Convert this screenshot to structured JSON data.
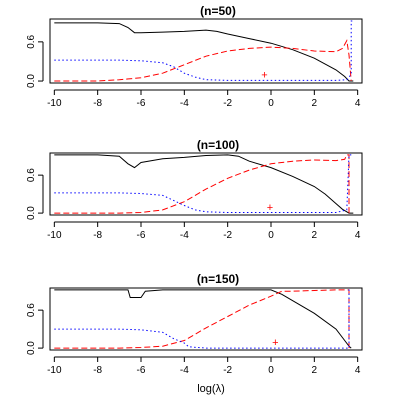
{
  "xlabel": "log(λ)",
  "colors": {
    "solid": "#000000",
    "dashed": "#ff0000",
    "dotted": "#0000ff",
    "marker": "#ff0000"
  },
  "chart_data": [
    {
      "type": "line",
      "title": "(n=50)",
      "xlim": [
        -10.2,
        4.2
      ],
      "ylim": [
        -0.03,
        0.95
      ],
      "x_ticks": [
        -10,
        -8,
        -6,
        -4,
        -2,
        0,
        2,
        4
      ],
      "y_ticks": [
        0.0,
        0.6
      ],
      "y_tick_labels": [
        "0.0",
        "0.6"
      ],
      "marker": {
        "x": -0.3,
        "y": 0.1,
        "symbol": "+"
      },
      "series": [
        {
          "style": "solid",
          "color": "black",
          "x": [
            -10,
            -9,
            -8,
            -7,
            -6.6,
            -6.3,
            -6,
            -5,
            -4,
            -3,
            -2.5,
            -2,
            -1,
            0,
            1,
            2,
            3,
            3.4,
            3.6,
            3.8
          ],
          "y": [
            0.89,
            0.89,
            0.89,
            0.88,
            0.82,
            0.74,
            0.74,
            0.75,
            0.76,
            0.78,
            0.76,
            0.72,
            0.65,
            0.58,
            0.48,
            0.35,
            0.17,
            0.07,
            0.0,
            0.0
          ]
        },
        {
          "style": "dashed",
          "color": "red",
          "x": [
            -10,
            -9,
            -8,
            -7,
            -6,
            -5,
            -4,
            -3,
            -2,
            -1,
            0,
            1,
            2,
            3,
            3.3,
            3.5,
            3.6,
            3.7
          ],
          "y": [
            0.0,
            0.0,
            0.0,
            0.02,
            0.05,
            0.12,
            0.25,
            0.38,
            0.46,
            0.5,
            0.52,
            0.5,
            0.46,
            0.45,
            0.5,
            0.62,
            0.4,
            0.0
          ]
        },
        {
          "style": "dotted",
          "color": "blue",
          "x": [
            -10,
            -9,
            -8,
            -7,
            -6,
            -5,
            -4.5,
            -4,
            -3.5,
            -3,
            -2,
            0,
            2,
            3,
            3.5,
            3.7,
            3.7,
            3.8
          ],
          "y": [
            0.32,
            0.32,
            0.32,
            0.32,
            0.31,
            0.28,
            0.22,
            0.12,
            0.06,
            0.02,
            0.01,
            0.01,
            0.01,
            0.01,
            0.02,
            0.1,
            0.92,
            0.92
          ]
        }
      ]
    },
    {
      "type": "line",
      "title": "(n=100)",
      "xlim": [
        -10.2,
        4.2
      ],
      "ylim": [
        -0.03,
        0.95
      ],
      "x_ticks": [
        -10,
        -8,
        -6,
        -4,
        -2,
        0,
        2,
        4
      ],
      "y_ticks": [
        0.0,
        0.6
      ],
      "y_tick_labels": [
        "0.0",
        "0.6"
      ],
      "marker": {
        "x": -0.05,
        "y": 0.1,
        "symbol": "+"
      },
      "series": [
        {
          "style": "solid",
          "color": "black",
          "x": [
            -10,
            -9,
            -8,
            -7,
            -6.6,
            -6.3,
            -6,
            -5,
            -4,
            -3,
            -2,
            -1.5,
            -1,
            0,
            1,
            2,
            2.5,
            3,
            3.3,
            3.5,
            3.6,
            3.8
          ],
          "y": [
            0.92,
            0.92,
            0.92,
            0.9,
            0.78,
            0.72,
            0.8,
            0.86,
            0.88,
            0.91,
            0.92,
            0.9,
            0.82,
            0.72,
            0.58,
            0.42,
            0.3,
            0.15,
            0.06,
            0.02,
            0.0,
            0.0
          ]
        },
        {
          "style": "dashed",
          "color": "red",
          "x": [
            -10,
            -8,
            -7,
            -6,
            -5,
            -4,
            -3,
            -2,
            -1,
            0,
            1,
            2,
            3,
            3.4,
            3.5,
            3.6,
            3.6
          ],
          "y": [
            0.0,
            0.0,
            0.0,
            0.01,
            0.05,
            0.18,
            0.38,
            0.55,
            0.68,
            0.78,
            0.82,
            0.84,
            0.83,
            0.85,
            0.92,
            0.92,
            0.0
          ]
        },
        {
          "style": "dotted",
          "color": "blue",
          "x": [
            -10,
            -9,
            -8,
            -7,
            -6,
            -5,
            -4.5,
            -4,
            -3.5,
            -3,
            -2,
            0,
            2,
            3,
            3.5,
            3.6,
            3.7,
            3.8
          ],
          "y": [
            0.32,
            0.32,
            0.32,
            0.32,
            0.31,
            0.28,
            0.2,
            0.12,
            0.05,
            0.02,
            0.01,
            0.01,
            0.01,
            0.01,
            0.05,
            0.92,
            0.92,
            0.92
          ]
        }
      ]
    },
    {
      "type": "line",
      "title": "(n=150)",
      "xlim": [
        -10.2,
        4.2
      ],
      "ylim": [
        -0.03,
        0.95
      ],
      "x_ticks": [
        -10,
        -8,
        -6,
        -4,
        -2,
        0,
        2,
        4
      ],
      "y_ticks": [
        0.0,
        0.6
      ],
      "y_tick_labels": [
        "0.0",
        "0.6"
      ],
      "marker": {
        "x": 0.2,
        "y": 0.1,
        "symbol": "+"
      },
      "series": [
        {
          "style": "solid",
          "color": "black",
          "x": [
            -10,
            -8,
            -7,
            -6.6,
            -6.5,
            -6,
            -5.8,
            -5,
            -4,
            -2,
            -1,
            0,
            0.5,
            1,
            2,
            3,
            3.4,
            3.6,
            3.7
          ],
          "y": [
            0.92,
            0.92,
            0.92,
            0.92,
            0.8,
            0.8,
            0.9,
            0.92,
            0.92,
            0.92,
            0.92,
            0.92,
            0.85,
            0.75,
            0.55,
            0.3,
            0.12,
            0.03,
            0.0
          ]
        },
        {
          "style": "dashed",
          "color": "red",
          "x": [
            -10,
            -8,
            -7,
            -6,
            -5,
            -4,
            -3.5,
            -3,
            -2,
            -1,
            0,
            0.5,
            1,
            2,
            3,
            3.6,
            3.6
          ],
          "y": [
            0.0,
            0.0,
            0.0,
            0.01,
            0.03,
            0.12,
            0.22,
            0.32,
            0.5,
            0.68,
            0.82,
            0.9,
            0.9,
            0.91,
            0.92,
            0.92,
            0.0
          ]
        },
        {
          "style": "dotted",
          "color": "blue",
          "x": [
            -10,
            -9,
            -8,
            -7,
            -6,
            -5,
            -4.5,
            -4,
            -3.8,
            -3,
            -2,
            0,
            2,
            3,
            3.5,
            3.6,
            3.6,
            3.7
          ],
          "y": [
            0.3,
            0.3,
            0.3,
            0.3,
            0.29,
            0.25,
            0.15,
            0.08,
            0.02,
            0.0,
            0.0,
            0.0,
            0.0,
            0.0,
            0.0,
            0.0,
            0.92,
            0.92
          ]
        }
      ]
    }
  ]
}
